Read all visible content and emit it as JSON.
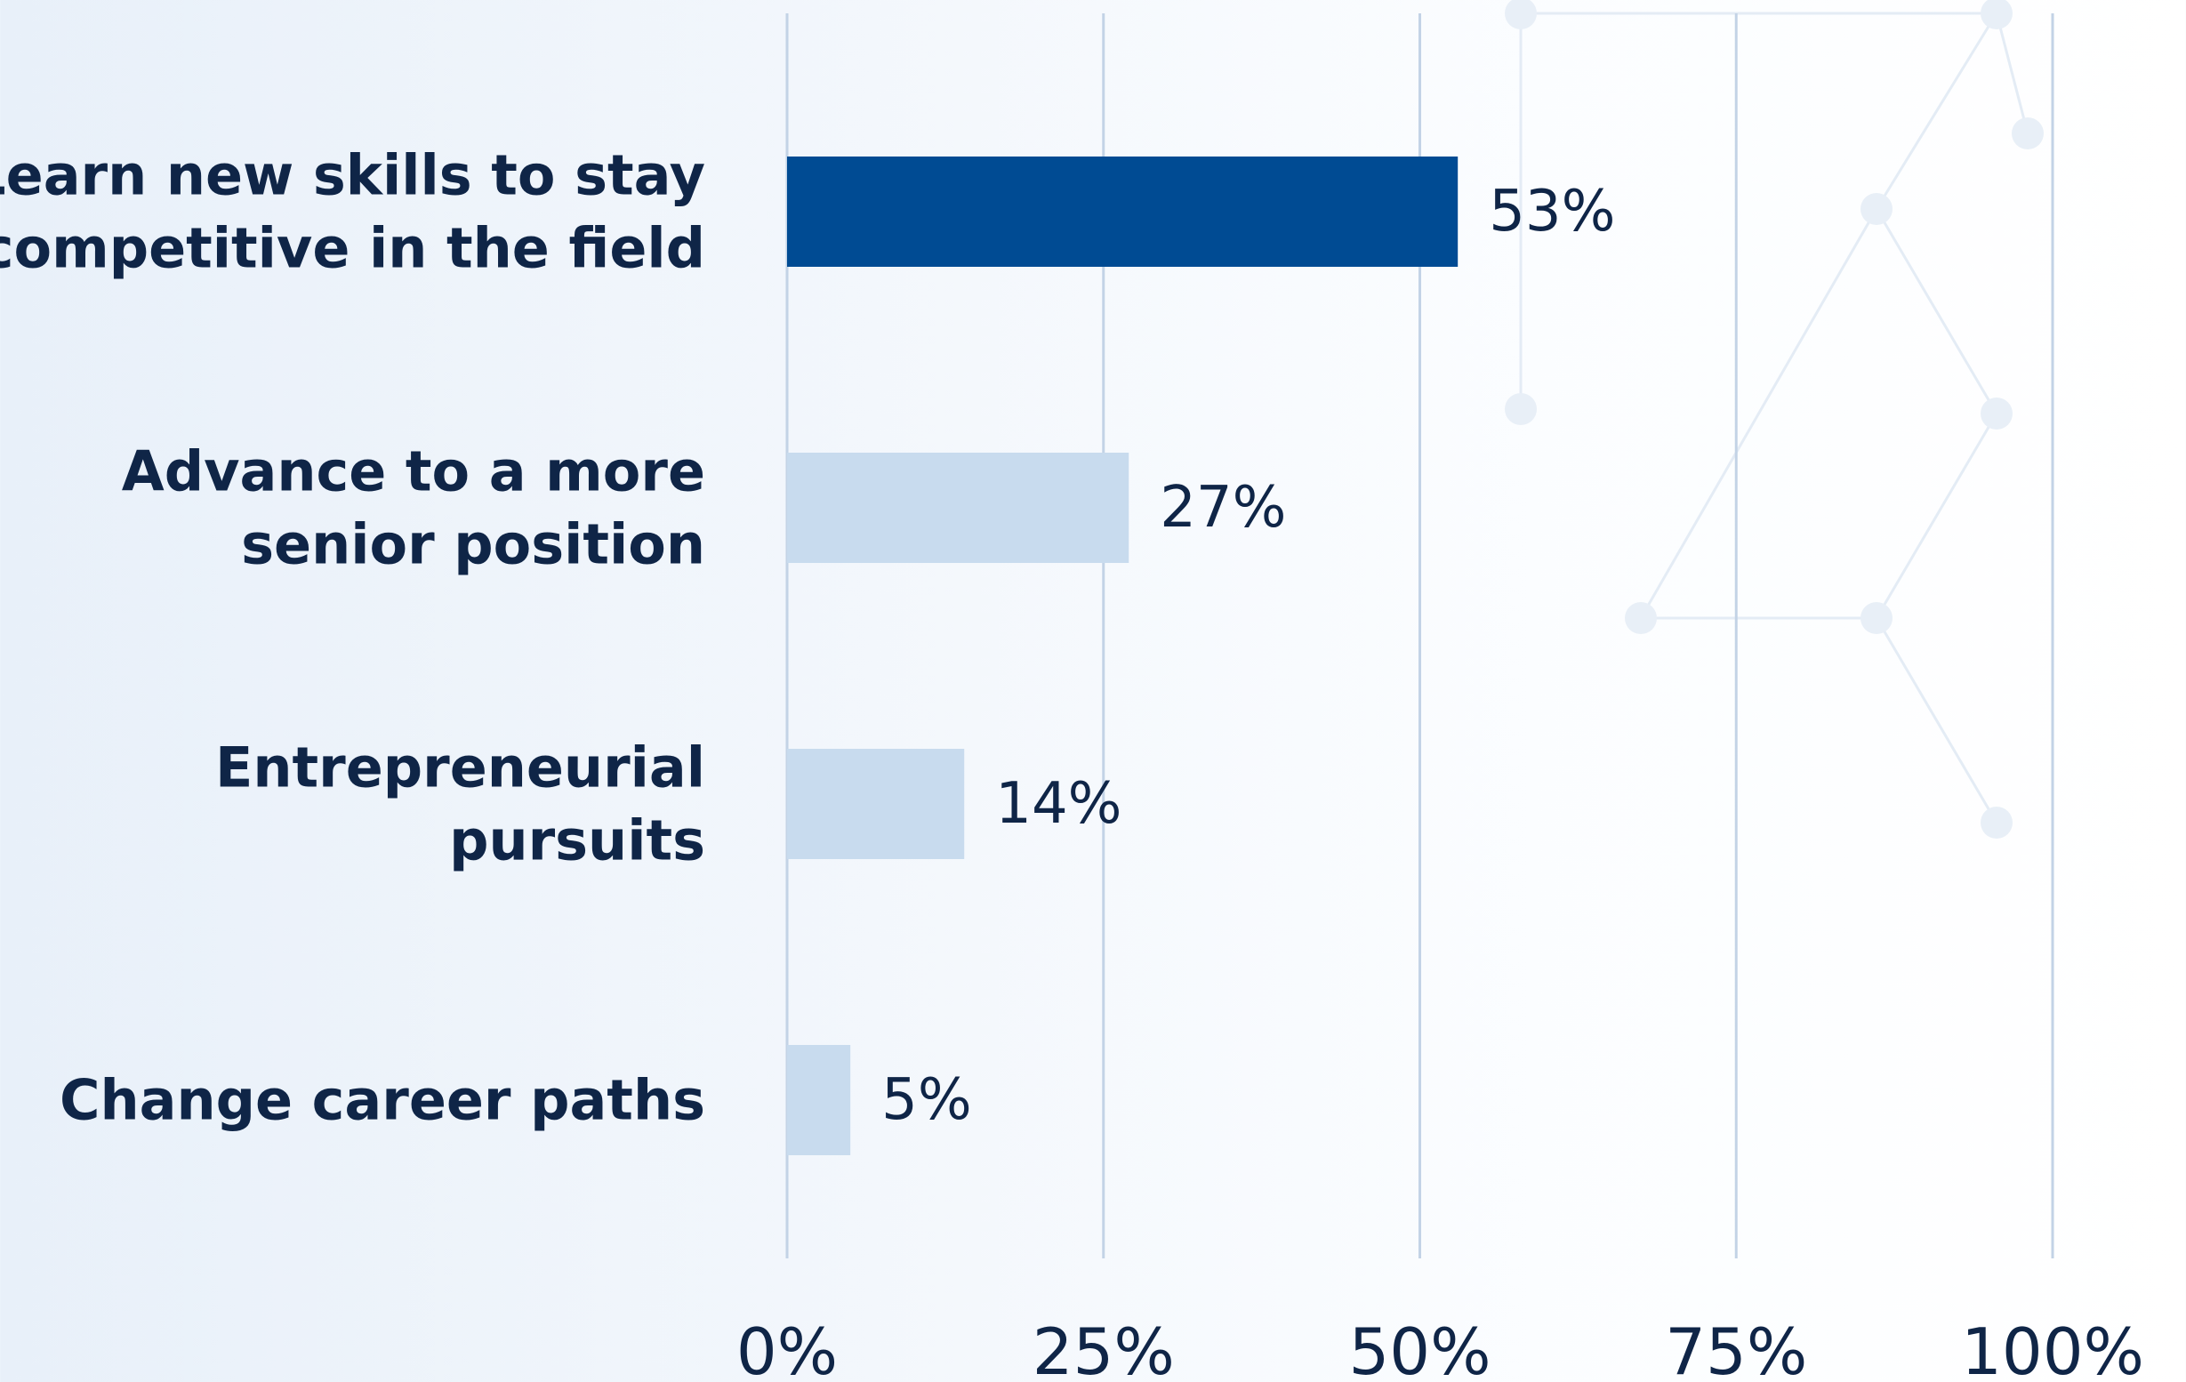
{
  "chart_data": {
    "type": "bar",
    "orientation": "horizontal",
    "categories": [
      [
        "Learn new skills to stay",
        "competitive in the field"
      ],
      [
        "Advance to a more",
        "senior position"
      ],
      [
        "Entrepreneurial",
        "pursuits"
      ],
      [
        "Change career paths"
      ]
    ],
    "values": [
      53,
      27,
      14,
      5
    ],
    "value_labels": [
      "53%",
      "27%",
      "14%",
      "5%"
    ],
    "xlim": [
      0,
      100
    ],
    "x_ticks": [
      "0%",
      "25%",
      "50%",
      "75%",
      "100%"
    ],
    "grid": true,
    "bar_colors": [
      "#004b93",
      "#c8dbee",
      "#c8dbee",
      "#c8dbee"
    ],
    "label_color": "#0f2547",
    "grid_color": "#c3d3e6",
    "title": "",
    "xlabel": "",
    "ylabel": ""
  }
}
